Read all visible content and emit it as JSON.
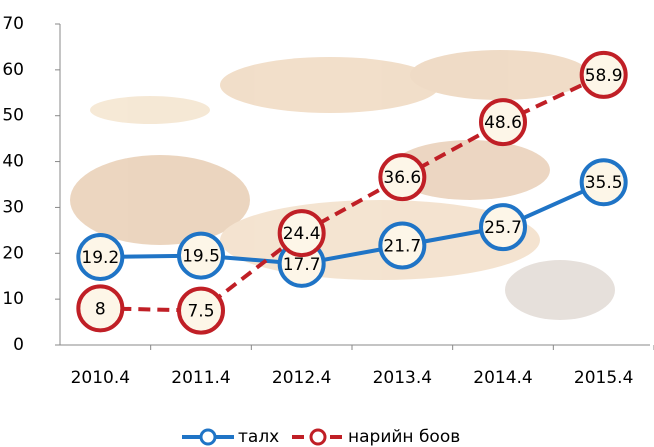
{
  "chart_data": {
    "type": "line",
    "categories": [
      "2010.4",
      "2011.4",
      "2012.4",
      "2013.4",
      "2014.4",
      "2015.4"
    ],
    "series": [
      {
        "name": "талх",
        "color": "#1f74c6",
        "dash": false,
        "values": [
          19.2,
          19.5,
          17.7,
          21.7,
          25.7,
          35.5
        ]
      },
      {
        "name": "нарийн боов",
        "color": "#c01f26",
        "dash": true,
        "values": [
          8,
          7.5,
          24.4,
          36.6,
          48.6,
          58.9
        ]
      }
    ],
    "ylim": [
      0,
      70
    ],
    "yticks": [
      0,
      10,
      20,
      30,
      40,
      50,
      60,
      70
    ],
    "grid": false
  }
}
